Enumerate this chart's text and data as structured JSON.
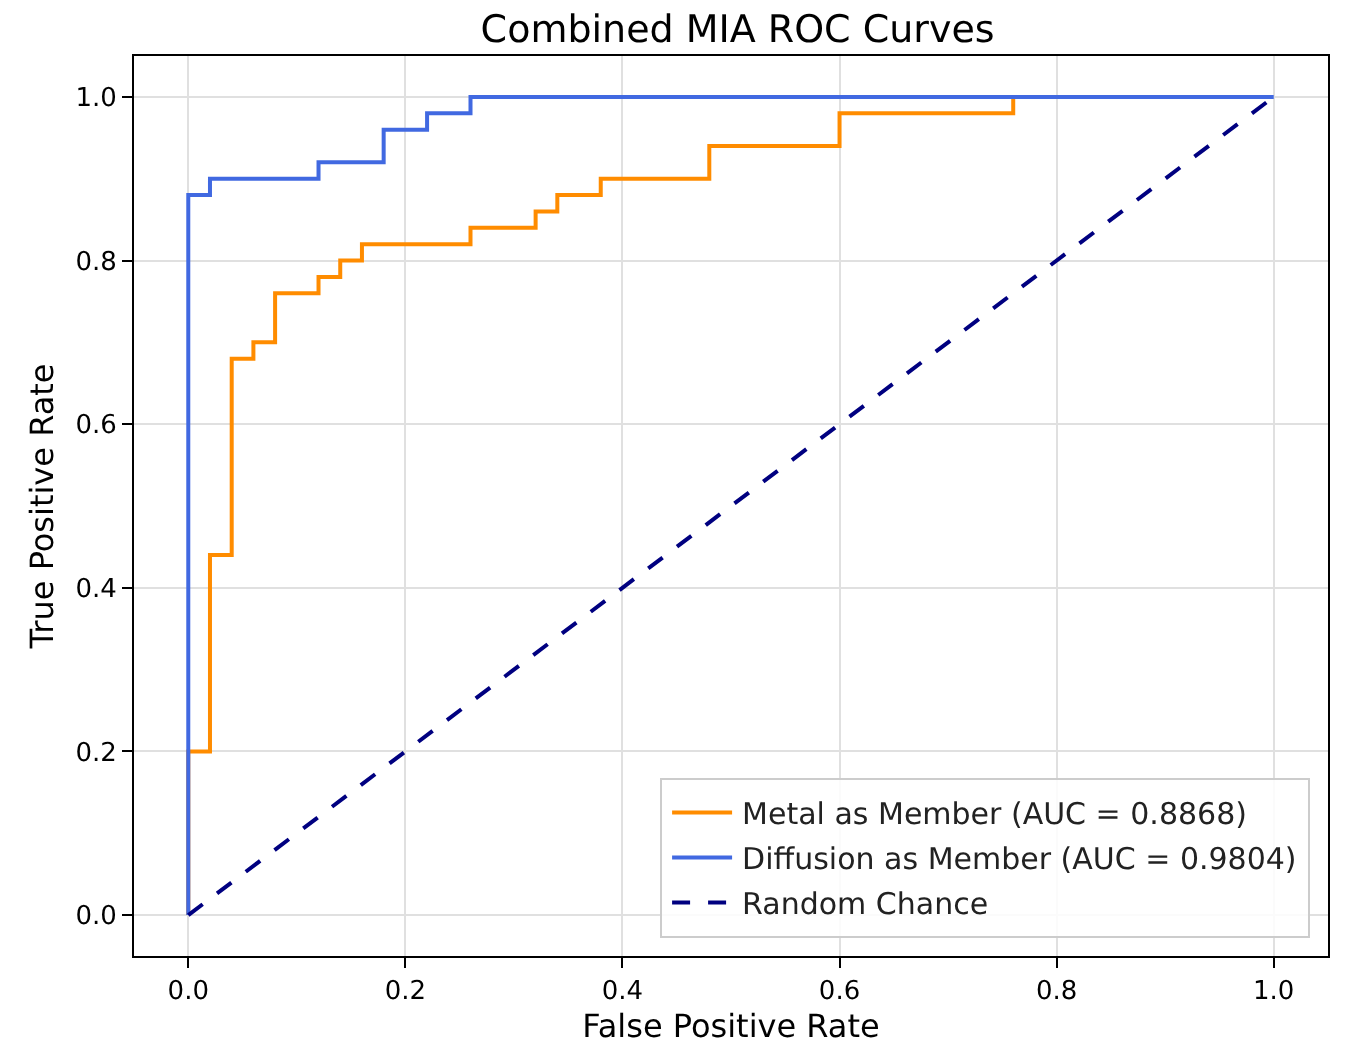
{
  "chart_data": {
    "type": "line",
    "title": "Combined MIA ROC Curves",
    "xlabel": "False Positive Rate",
    "ylabel": "True Positive Rate",
    "series": [
      {
        "name": "Metal as Member (AUC = 0.8868)",
        "color": "#ff8c00",
        "line_style": "solid",
        "x": [
          0,
          0,
          0.02,
          0.02,
          0.04,
          0.04,
          0.06,
          0.06,
          0.08,
          0.08,
          0.12,
          0.12,
          0.14,
          0.14,
          0.16,
          0.16,
          0.26,
          0.26,
          0.32,
          0.32,
          0.34,
          0.34,
          0.38,
          0.38,
          0.48,
          0.48,
          0.6,
          0.6,
          0.76,
          0.76
        ],
        "values": [
          0,
          0.2,
          0.2,
          0.44,
          0.44,
          0.68,
          0.68,
          0.7,
          0.7,
          0.76,
          0.76,
          0.78,
          0.78,
          0.8,
          0.8,
          0.82,
          0.82,
          0.84,
          0.84,
          0.86,
          0.86,
          0.88,
          0.88,
          0.9,
          0.9,
          0.94,
          0.94,
          0.98,
          0.98,
          1
        ]
      },
      {
        "name": "Diffusion as Member (AUC = 0.9804)",
        "color": "#4169e1",
        "line_style": "solid",
        "x": [
          0,
          0,
          0.02,
          0.02,
          0.12,
          0.12,
          0.18,
          0.18,
          0.22,
          0.22,
          0.26,
          0.26,
          1
        ],
        "values": [
          0,
          0.88,
          0.88,
          0.9,
          0.9,
          0.92,
          0.92,
          0.96,
          0.96,
          0.98,
          0.98,
          1,
          1
        ]
      },
      {
        "name": "Random Chance",
        "color": "#000080",
        "line_style": "dashed",
        "x": [
          0,
          1
        ],
        "values": [
          0,
          1
        ]
      }
    ],
    "xlim": [
      -0.05,
      1.05
    ],
    "ylim": [
      -0.05,
      1.05
    ],
    "xticks": [
      {
        "value": 0,
        "label": "0.0"
      },
      {
        "value": 0.2,
        "label": "0.2"
      },
      {
        "value": 0.4,
        "label": "0.4"
      },
      {
        "value": 0.6,
        "label": "0.6"
      },
      {
        "value": 0.8,
        "label": "0.8"
      },
      {
        "value": 1,
        "label": "1.0"
      }
    ],
    "yticks": [
      {
        "value": 0,
        "label": "0.0"
      },
      {
        "value": 0.2,
        "label": "0.2"
      },
      {
        "value": 0.4,
        "label": "0.4"
      },
      {
        "value": 0.6,
        "label": "0.6"
      },
      {
        "value": 0.8,
        "label": "0.8"
      },
      {
        "value": 1,
        "label": "1.0"
      }
    ],
    "grid": true,
    "legend": "bottom right",
    "marker": "none"
  }
}
